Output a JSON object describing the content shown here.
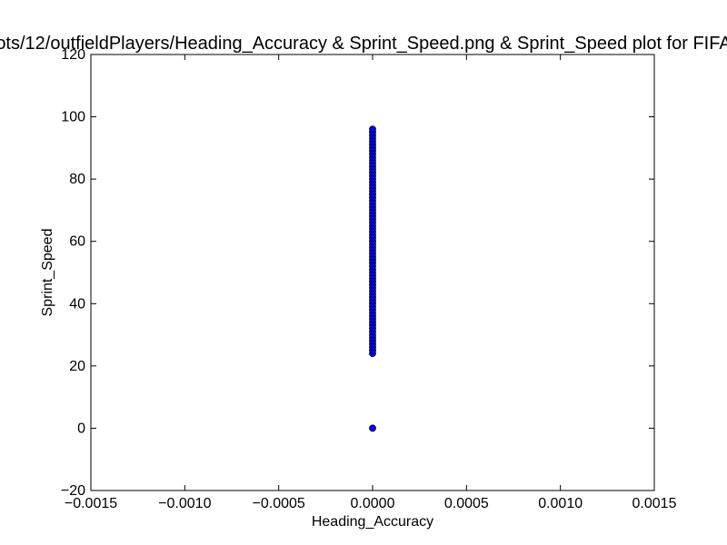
{
  "chart_data": {
    "type": "scatter",
    "title": "ots/12/outfieldPlayers/Heading_Accuracy & Sprint_Speed.png & Sprint_Speed plot for FIFA",
    "xlabel": "Heading_Accuracy",
    "ylabel": "Sprint_Speed",
    "xlim": [
      -0.0015,
      0.0015
    ],
    "ylim": [
      -20,
      120
    ],
    "x_ticks": [
      "−0.0015",
      "−0.0010",
      "−0.0005",
      "0.0000",
      "0.0005",
      "0.0010",
      "0.0015"
    ],
    "y_ticks": [
      "−20",
      "0",
      "20",
      "40",
      "60",
      "80",
      "100",
      "120"
    ],
    "grid": false,
    "marker_color": "#0000ff",
    "points": {
      "x": [
        0,
        0,
        0,
        0,
        0,
        0,
        0,
        0,
        0,
        0,
        0,
        0,
        0,
        0,
        0,
        0,
        0,
        0,
        0,
        0,
        0,
        0,
        0,
        0,
        0,
        0,
        0,
        0,
        0,
        0,
        0,
        0,
        0,
        0,
        0,
        0,
        0,
        0,
        0,
        0,
        0,
        0,
        0,
        0,
        0,
        0,
        0,
        0,
        0,
        0,
        0,
        0,
        0,
        0,
        0,
        0,
        0,
        0,
        0,
        0,
        0,
        0,
        0,
        0,
        0,
        0,
        0,
        0,
        0,
        0,
        0,
        0,
        0,
        0
      ],
      "y": [
        0,
        24,
        25,
        26,
        27,
        28,
        29,
        30,
        31,
        32,
        33,
        34,
        35,
        36,
        37,
        38,
        39,
        40,
        41,
        42,
        43,
        44,
        45,
        46,
        47,
        48,
        49,
        50,
        51,
        52,
        53,
        54,
        55,
        56,
        57,
        58,
        59,
        60,
        61,
        62,
        63,
        64,
        65,
        66,
        67,
        68,
        69,
        70,
        71,
        72,
        73,
        74,
        75,
        76,
        77,
        78,
        79,
        80,
        81,
        82,
        83,
        84,
        85,
        86,
        87,
        88,
        89,
        90,
        91,
        92,
        93,
        94,
        95,
        96
      ]
    }
  }
}
